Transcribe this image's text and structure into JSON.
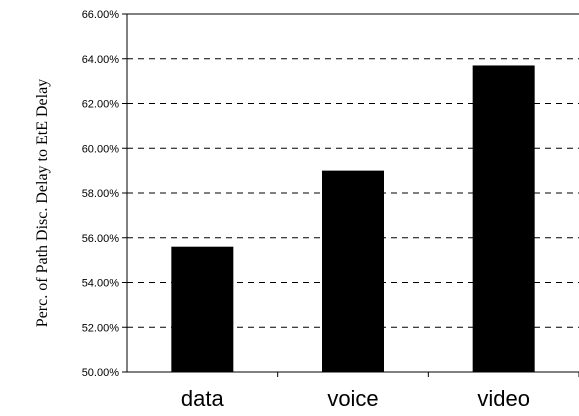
{
  "chart_data": {
    "type": "bar",
    "categories": [
      "data",
      "voice",
      "video"
    ],
    "values": [
      55.6,
      59.0,
      63.7
    ],
    "title": "",
    "xlabel": "",
    "ylabel": "Perc. of Path Disc. Delay to EtE Delay",
    "ylim": [
      50,
      66
    ],
    "yticks": [
      50,
      52,
      54,
      56,
      58,
      60,
      62,
      64,
      66
    ],
    "ytick_labels": [
      "50.00%",
      "52.00%",
      "54.00%",
      "56.00%",
      "58.00%",
      "60.00%",
      "62.00%",
      "64.00%",
      "66.00%"
    ],
    "grid": "horizontal dashed",
    "legend": "none",
    "bar_color": "#000000"
  }
}
